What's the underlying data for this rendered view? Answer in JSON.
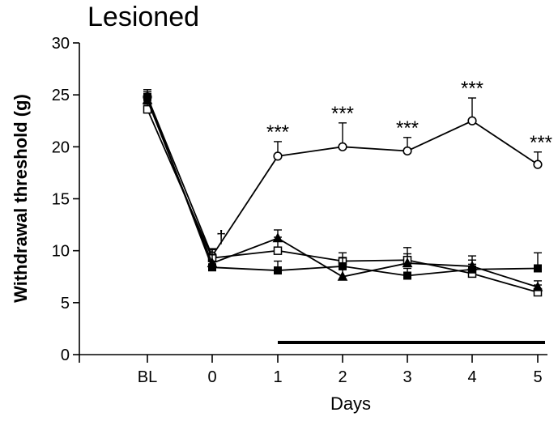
{
  "chart_data": {
    "type": "line",
    "title": "Lesioned",
    "xlabel": "Days",
    "ylabel": "Withdrawal threshold (g)",
    "categories": [
      "BL",
      "0",
      "1",
      "2",
      "3",
      "4",
      "5"
    ],
    "ylim": [
      0,
      30
    ],
    "yticks": [
      "0",
      "5",
      "10",
      "15",
      "20",
      "25",
      "30"
    ],
    "grid": false,
    "treatment_bar": {
      "from": "1",
      "to": "5"
    },
    "series": [
      {
        "marker": "circle-open",
        "values": [
          24.8,
          9.5,
          19.1,
          20.0,
          19.6,
          22.5,
          18.3
        ],
        "err": [
          0.5,
          0.7,
          1.4,
          2.3,
          1.3,
          2.2,
          1.2
        ]
      },
      {
        "marker": "square-open",
        "values": [
          23.6,
          9.3,
          10.0,
          9.0,
          9.1,
          7.8,
          6.0
        ],
        "err": [
          0.5,
          0.8,
          1.3,
          0.8,
          1.2,
          0.9,
          0.7
        ]
      },
      {
        "marker": "triangle-filled",
        "values": [
          24.5,
          8.8,
          11.2,
          7.5,
          8.8,
          8.5,
          6.5
        ],
        "err": [
          0.6,
          0.8,
          0.8,
          0.7,
          0.9,
          1.0,
          0.6
        ]
      },
      {
        "marker": "square-filled",
        "values": [
          24.8,
          8.4,
          8.1,
          8.5,
          7.6,
          8.2,
          8.3
        ],
        "err": [
          0.7,
          0.6,
          0.9,
          0.8,
          0.7,
          0.9,
          1.5
        ]
      }
    ],
    "annotations": [
      {
        "x": "0",
        "y": 9.5,
        "text": "†"
      },
      {
        "x": "1",
        "y": 19.1,
        "text": "***"
      },
      {
        "x": "2",
        "y": 20.0,
        "text": "***"
      },
      {
        "x": "3",
        "y": 19.6,
        "text": "***"
      },
      {
        "x": "4",
        "y": 22.5,
        "text": "***"
      },
      {
        "x": "5",
        "y": 18.3,
        "text": "***"
      }
    ]
  }
}
